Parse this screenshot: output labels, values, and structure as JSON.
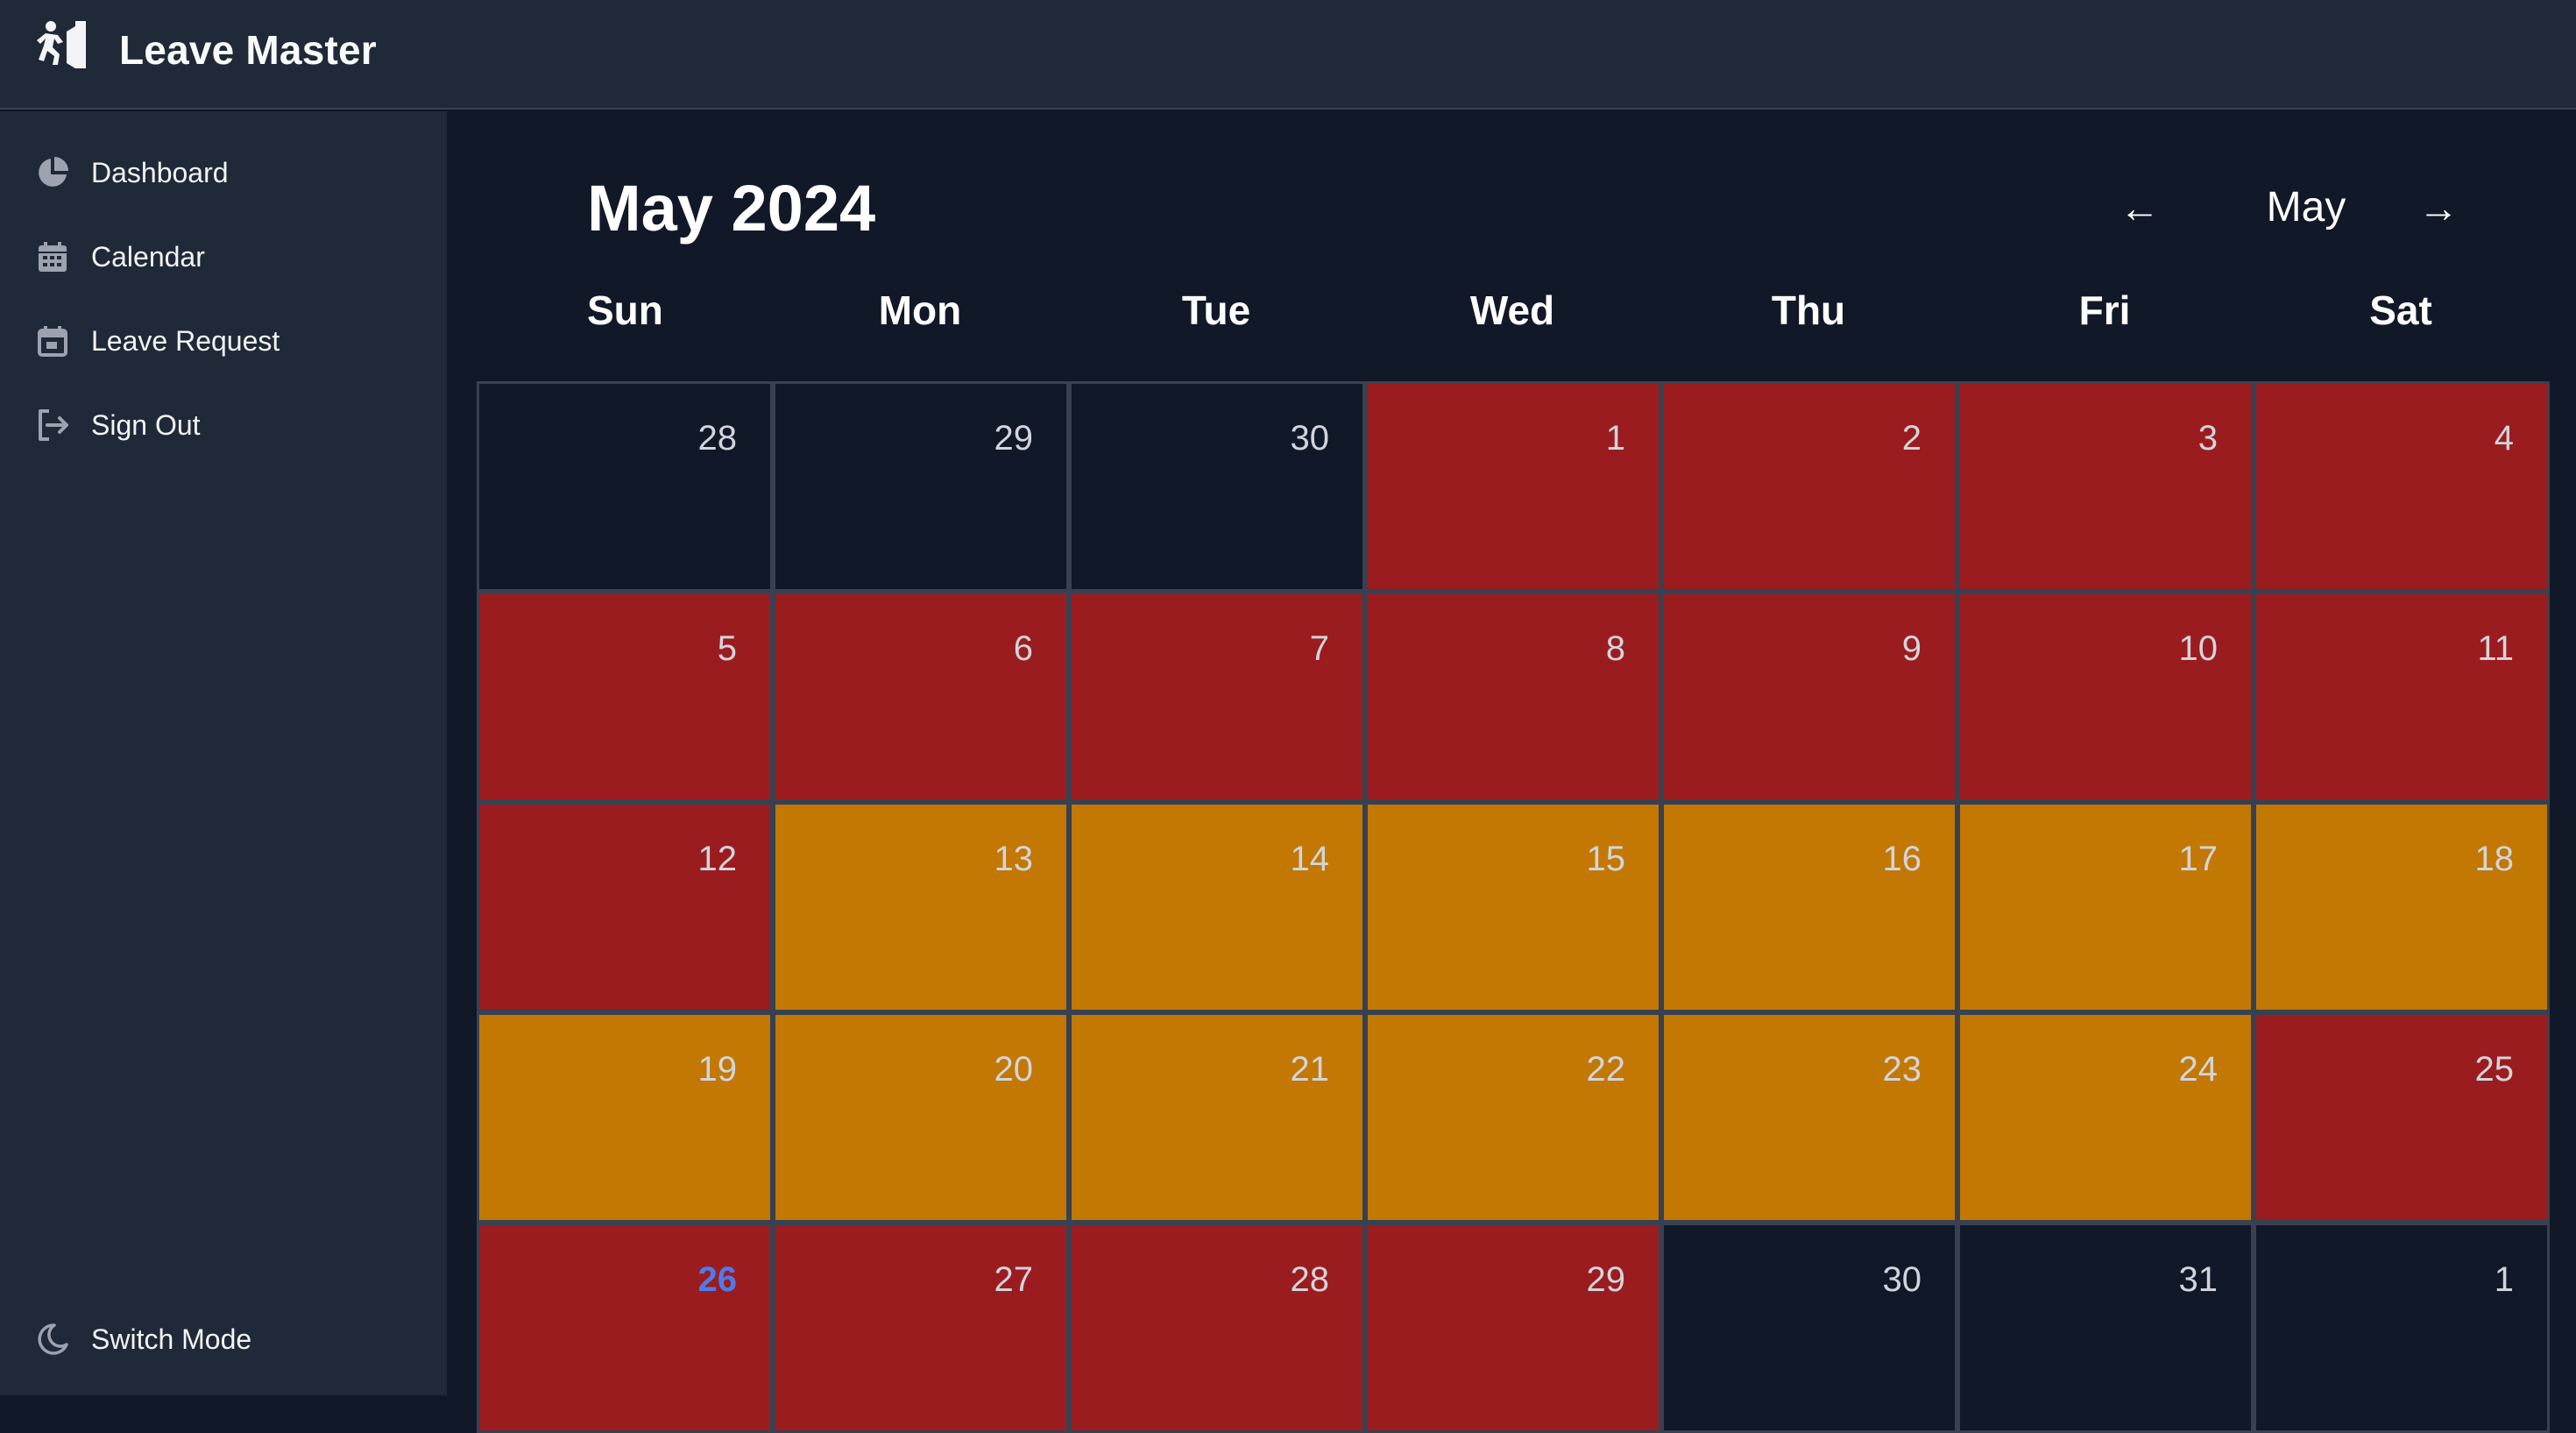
{
  "app": {
    "title": "Leave Master",
    "logo_icon": "leave-logo-icon"
  },
  "sidebar": {
    "items": [
      {
        "label": "Dashboard",
        "icon": "pie-chart-icon"
      },
      {
        "label": "Calendar",
        "icon": "calendar-icon"
      },
      {
        "label": "Leave Request",
        "icon": "calendar-edit-icon"
      },
      {
        "label": "Sign Out",
        "icon": "sign-out-icon"
      }
    ],
    "footer": {
      "label": "Switch Mode",
      "icon": "moon-icon"
    }
  },
  "calendar": {
    "title": "May 2024",
    "current_month": "May",
    "prev_arrow": "←",
    "next_arrow": "→",
    "weekdays": [
      "Sun",
      "Mon",
      "Tue",
      "Wed",
      "Thu",
      "Fri",
      "Sat"
    ],
    "colors": {
      "red": "#9b1c1f",
      "amber": "#c27803",
      "default": "#111827",
      "today_text": "#4f7bea"
    },
    "days": [
      {
        "day": "28",
        "status": "default"
      },
      {
        "day": "29",
        "status": "default"
      },
      {
        "day": "30",
        "status": "default"
      },
      {
        "day": "1",
        "status": "red"
      },
      {
        "day": "2",
        "status": "red"
      },
      {
        "day": "3",
        "status": "red"
      },
      {
        "day": "4",
        "status": "red"
      },
      {
        "day": "5",
        "status": "red"
      },
      {
        "day": "6",
        "status": "red"
      },
      {
        "day": "7",
        "status": "red"
      },
      {
        "day": "8",
        "status": "red"
      },
      {
        "day": "9",
        "status": "red"
      },
      {
        "day": "10",
        "status": "red"
      },
      {
        "day": "11",
        "status": "red"
      },
      {
        "day": "12",
        "status": "red"
      },
      {
        "day": "13",
        "status": "amber"
      },
      {
        "day": "14",
        "status": "amber"
      },
      {
        "day": "15",
        "status": "amber"
      },
      {
        "day": "16",
        "status": "amber"
      },
      {
        "day": "17",
        "status": "amber"
      },
      {
        "day": "18",
        "status": "amber"
      },
      {
        "day": "19",
        "status": "amber"
      },
      {
        "day": "20",
        "status": "amber"
      },
      {
        "day": "21",
        "status": "amber"
      },
      {
        "day": "22",
        "status": "amber"
      },
      {
        "day": "23",
        "status": "amber"
      },
      {
        "day": "24",
        "status": "amber"
      },
      {
        "day": "25",
        "status": "red"
      },
      {
        "day": "26",
        "status": "red",
        "today": true
      },
      {
        "day": "27",
        "status": "red"
      },
      {
        "day": "28",
        "status": "red"
      },
      {
        "day": "29",
        "status": "red"
      },
      {
        "day": "30",
        "status": "default"
      },
      {
        "day": "31",
        "status": "default"
      },
      {
        "day": "1",
        "status": "default"
      }
    ]
  }
}
